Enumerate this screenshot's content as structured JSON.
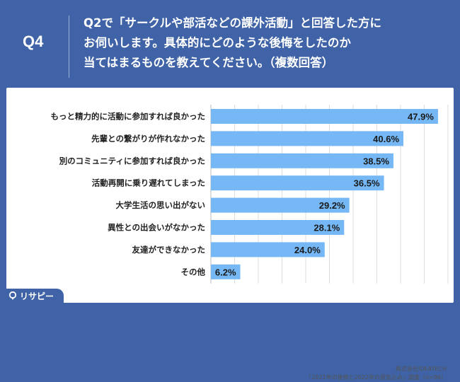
{
  "header": {
    "qnum": "Q4",
    "question_lines": [
      "Q2で「サークルや部活などの課外活動」と回答した方に",
      "お伺いします。具体的にどのような後悔をしたのか",
      "当てはまるものを教えてください。（複数回答）"
    ]
  },
  "credit": {
    "company": "株式会社IDEATECH",
    "survey": "「2021年の後悔と2022年の意気込み」調査（n=96）"
  },
  "logo": {
    "text": "リサピー"
  },
  "colors": {
    "header_bg": "#3f63a6",
    "bar": "#75b8f5",
    "grid": "#dddddd"
  },
  "chart_data": {
    "type": "bar",
    "orientation": "horizontal",
    "categories": [
      "もっと精力的に活動に参加すれば良かった",
      "先輩との繋がりが作れなかった",
      "別のコミュニティに参加すれば良かった",
      "活動再開に乗り遅れてしまった",
      "大学生活の思い出がない",
      "異性との出会いがなかった",
      "友達ができなかった",
      "その他"
    ],
    "values": [
      47.9,
      40.6,
      38.5,
      36.5,
      29.2,
      28.1,
      24.0,
      6.2
    ],
    "value_labels": [
      "47.9%",
      "40.6%",
      "38.5%",
      "36.5%",
      "29.2%",
      "28.1%",
      "24.0%",
      "6.2%"
    ],
    "xlim": [
      0,
      50
    ],
    "grid": true
  }
}
